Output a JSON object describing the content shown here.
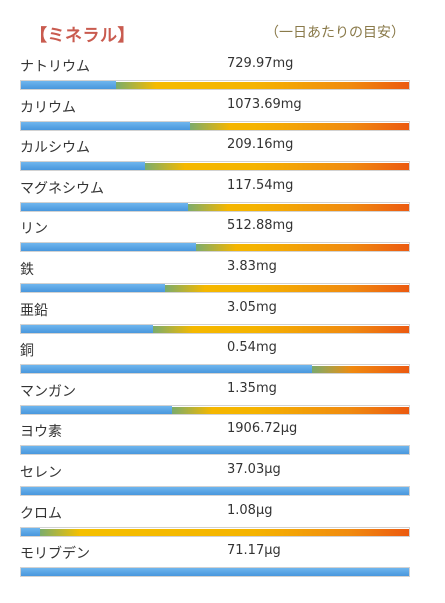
{
  "header": {
    "title": "【ミネラル】",
    "subtitle": "（一日あたりの目安）"
  },
  "minerals": [
    {
      "name": "ナトリウム",
      "value": "729.97mg",
      "fill_fraction": 0.245
    },
    {
      "name": "カリウム",
      "value": "1073.69mg",
      "fill_fraction": 0.435
    },
    {
      "name": "カルシウム",
      "value": "209.16mg",
      "fill_fraction": 0.32
    },
    {
      "name": "マグネシウム",
      "value": "117.54mg",
      "fill_fraction": 0.43
    },
    {
      "name": "リン",
      "value": "512.88mg",
      "fill_fraction": 0.45
    },
    {
      "name": "鉄",
      "value": "3.83mg",
      "fill_fraction": 0.37
    },
    {
      "name": "亜鉛",
      "value": "3.05mg",
      "fill_fraction": 0.34
    },
    {
      "name": "銅",
      "value": "0.54mg",
      "fill_fraction": 0.75
    },
    {
      "name": "マンガン",
      "value": "1.35mg",
      "fill_fraction": 0.39
    },
    {
      "name": "ヨウ素",
      "value": "1906.72μg",
      "fill_fraction": 1.0
    },
    {
      "name": "セレン",
      "value": "37.03μg",
      "fill_fraction": 1.0
    },
    {
      "name": "クロム",
      "value": "1.08μg",
      "fill_fraction": 0.05
    },
    {
      "name": "モリブデン",
      "value": "71.17μg",
      "fill_fraction": 1.0
    }
  ],
  "colors": {
    "title": "#c95b4f",
    "subtitle": "#8a7a4a",
    "fill": "#3f8fd8",
    "track_start": "#f5c400",
    "track_end": "#ec5a10"
  }
}
